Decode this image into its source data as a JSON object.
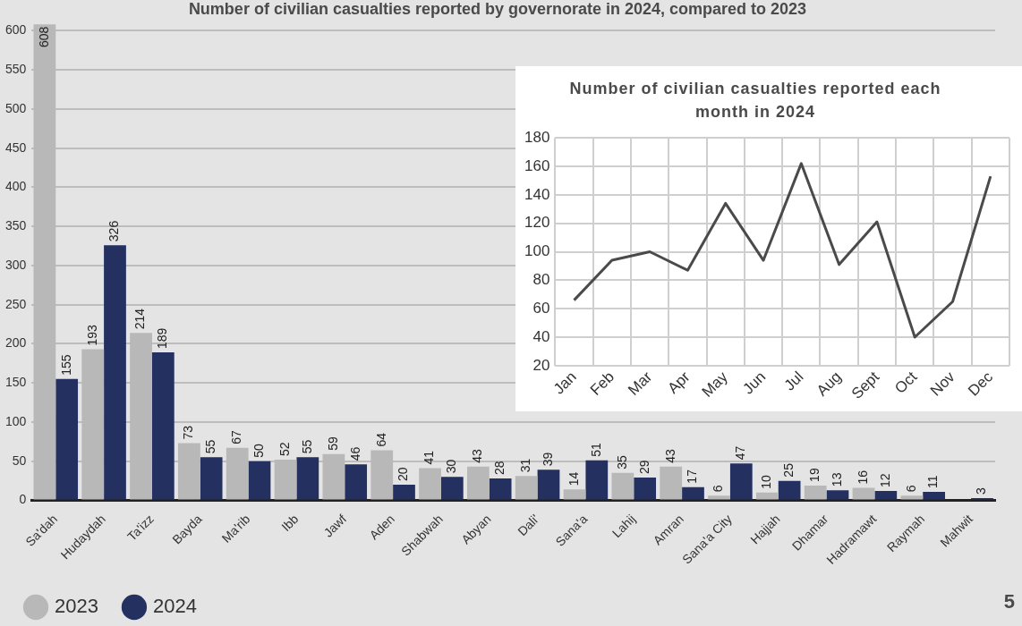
{
  "chart_data": [
    {
      "type": "bar",
      "title": "Number of civilian casualties reported by governorate in 2024, compared to 2023",
      "categories": [
        "Sa'dah",
        "Hudaydah",
        "Ta'izz",
        "Bayda",
        "Ma'rib",
        "Ibb",
        "Jawf",
        "Aden",
        "Shabwah",
        "Abyan",
        "Dali'",
        "Sana'a",
        "Lahij",
        "Amran",
        "Sana'a City",
        "Hajjah",
        "Dhamar",
        "Hadramawt",
        "Raymah",
        "Mahwit"
      ],
      "series": [
        {
          "name": "2023",
          "color": "#b8b8b8",
          "values": [
            608,
            193,
            214,
            73,
            67,
            52,
            59,
            64,
            41,
            43,
            31,
            14,
            35,
            43,
            6,
            10,
            19,
            16,
            6,
            null
          ]
        },
        {
          "name": "2024",
          "color": "#243160",
          "values": [
            155,
            326,
            189,
            55,
            50,
            55,
            46,
            20,
            30,
            28,
            39,
            51,
            29,
            17,
            47,
            25,
            13,
            12,
            11,
            3
          ]
        }
      ],
      "ylim": [
        0,
        610
      ],
      "yticks": [
        0,
        50,
        100,
        150,
        200,
        250,
        300,
        350,
        400,
        450,
        500,
        550,
        600
      ],
      "grid": "y",
      "legend": "bottom left",
      "data_labels": true,
      "annotations": [
        "5"
      ]
    },
    {
      "type": "line",
      "title": "Number of civilian casualties reported each month in 2024",
      "categories": [
        "Jan",
        "Feb",
        "Mar",
        "Apr",
        "May",
        "Jun",
        "Jul",
        "Aug",
        "Sept",
        "Oct",
        "Nov",
        "Dec"
      ],
      "series": [
        {
          "color": "#4a4a4a",
          "values": [
            66,
            94,
            100,
            87,
            134,
            94,
            162,
            91,
            121,
            40,
            65,
            153
          ]
        }
      ],
      "ylim": [
        20,
        180
      ],
      "yticks": [
        20,
        40,
        60,
        80,
        100,
        120,
        140,
        160,
        180
      ],
      "grid": true,
      "marker": "none",
      "line_style": "solid"
    }
  ]
}
